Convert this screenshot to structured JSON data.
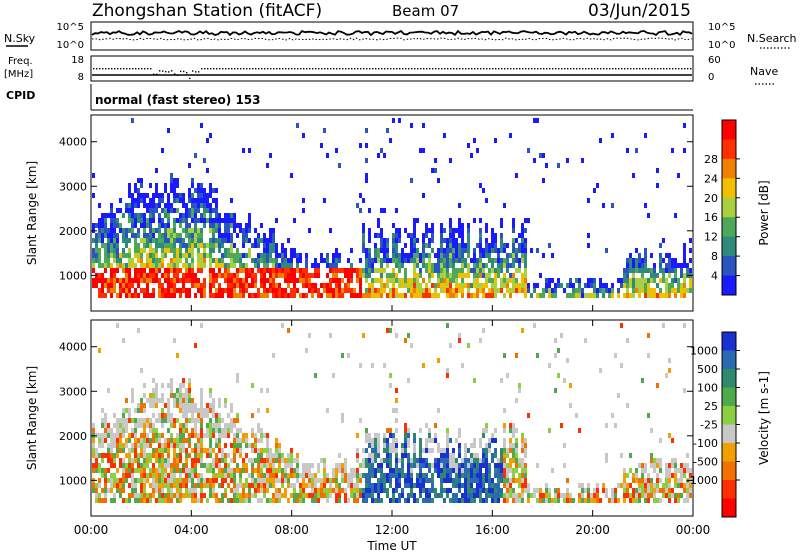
{
  "header": {
    "station": "Zhongshan Station (fitACF)",
    "beam": "Beam 07",
    "date": "03/Jun/2015"
  },
  "noise_panel": {
    "left_label": "N.Sky",
    "left_ticks": [
      "10^5",
      "10^0"
    ],
    "right_ticks": [
      "10^5",
      "10^0"
    ],
    "right_label": "N.Search"
  },
  "freq_panel": {
    "left_label_1": "Freq.",
    "left_label_2": "[MHz]",
    "left_ticks": [
      "18",
      "8"
    ],
    "right_ticks": [
      "60",
      "0"
    ],
    "right_label": "Nave"
  },
  "cpid_panel": {
    "label": "CPID",
    "text": "normal (fast stereo) 153"
  },
  "chart_data": [
    {
      "type": "heatmap",
      "id": "power",
      "ylabel": "Slant Range [km]",
      "xlabel": "",
      "yticks": [
        "1000",
        "2000",
        "3000",
        "4000"
      ],
      "ylim": [
        200,
        4600
      ],
      "colorbar_label": "Power [dB]",
      "colorbar_ticks": [
        "4",
        "8",
        "12",
        "16",
        "20",
        "24",
        "28"
      ],
      "colorbar_range": [
        0,
        32
      ],
      "colors": [
        "#1a1aff",
        "#2a55c0",
        "#2e8a7a",
        "#4ea85a",
        "#a8d040",
        "#f0c000",
        "#f08000",
        "#ff3000",
        "#ff0000"
      ]
    },
    {
      "type": "heatmap",
      "id": "velocity",
      "ylabel": "Slant Range [km]",
      "xlabel": "Time UT",
      "yticks": [
        "1000",
        "2000",
        "3000",
        "4000"
      ],
      "ylim": [
        200,
        4600
      ],
      "xticks": [
        "00:00",
        "04:00",
        "08:00",
        "12:00",
        "16:00",
        "20:00",
        "00:00"
      ],
      "colorbar_label": "Velocity [m s-1]",
      "colorbar_ticks": [
        "1000",
        "500",
        "100",
        "25",
        "-25",
        "-100",
        "-500",
        "-1000"
      ],
      "colors": [
        "#1a30d0",
        "#2a6ab0",
        "#2e8a6a",
        "#4faa4a",
        "#8ad040",
        "#c8c8c8",
        "#f0a000",
        "#f07000",
        "#ff3000",
        "#ff0000"
      ]
    }
  ]
}
